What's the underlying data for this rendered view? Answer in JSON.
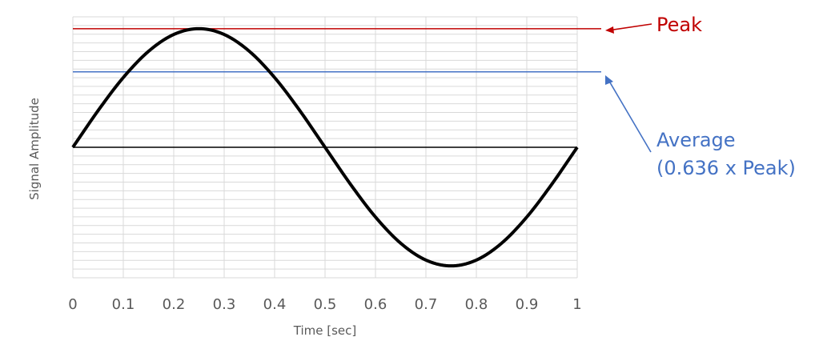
{
  "chart_data": {
    "type": "line",
    "title": "",
    "xlabel": "Time [sec]",
    "ylabel": "Signal Amplitude",
    "xlim": [
      0,
      1
    ],
    "ylim": [
      -1.1,
      1.1
    ],
    "x_ticks": [
      "0",
      "0.1",
      "0.2",
      "0.3",
      "0.4",
      "0.5",
      "0.6",
      "0.7",
      "0.8",
      "0.9",
      "1"
    ],
    "grid": true,
    "legend": "none",
    "series": [
      {
        "color": "#000000",
        "x": [
          0,
          0.05,
          0.1,
          0.15,
          0.2,
          0.25,
          0.3,
          0.35,
          0.4,
          0.45,
          0.5,
          0.55,
          0.6,
          0.65,
          0.7,
          0.75,
          0.8,
          0.85,
          0.9,
          0.95,
          1
        ],
        "y": [
          0,
          0.309,
          0.588,
          0.809,
          0.951,
          1,
          0.951,
          0.809,
          0.588,
          0.309,
          0,
          -0.309,
          -0.588,
          -0.809,
          -0.951,
          -1,
          -0.951,
          -0.809,
          -0.588,
          -0.309,
          0
        ]
      }
    ],
    "reference_lines": [
      {
        "label": "Peak",
        "y": 1.0,
        "color": "#c00000"
      },
      {
        "label": "Average",
        "label_line2": "(0.636 x Peak)",
        "y": 0.636,
        "color": "#4472c4"
      }
    ],
    "zero_line_color": "#000000"
  }
}
